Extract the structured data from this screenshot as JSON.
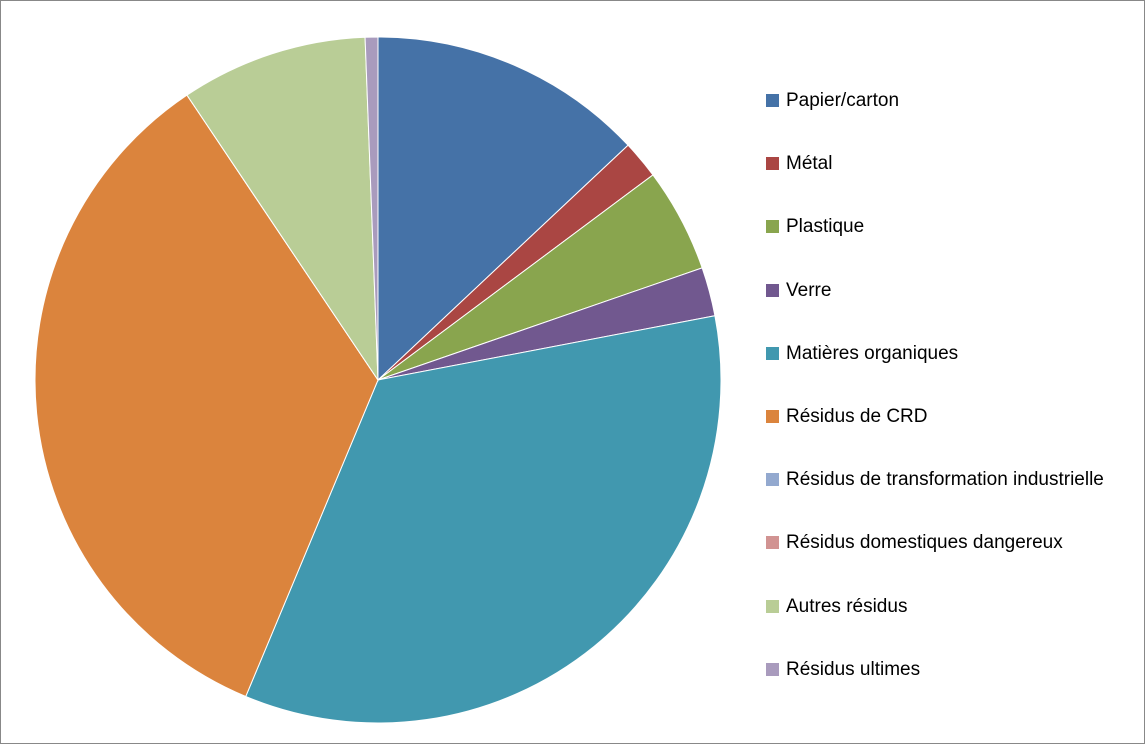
{
  "chart_data": {
    "type": "pie",
    "categories": [
      "Papier/carton",
      "Métal",
      "Plastique",
      "Verre",
      "Matières organiques",
      "Résidus de CRD",
      "Résidus de transformation industrielle",
      "Résidus domestiques dangereux",
      "Autres résidus",
      "Résidus ultimes"
    ],
    "values": [
      13,
      1.8,
      4.9,
      2.3,
      34.3,
      34.3,
      0,
      0,
      8.8,
      0.6
    ],
    "colors": [
      "#4572a7",
      "#aa4643",
      "#89a54e",
      "#71588f",
      "#4198af",
      "#db843d",
      "#93a9cf",
      "#d19392",
      "#b9cd96",
      "#a99bbd"
    ],
    "legend": "right"
  }
}
